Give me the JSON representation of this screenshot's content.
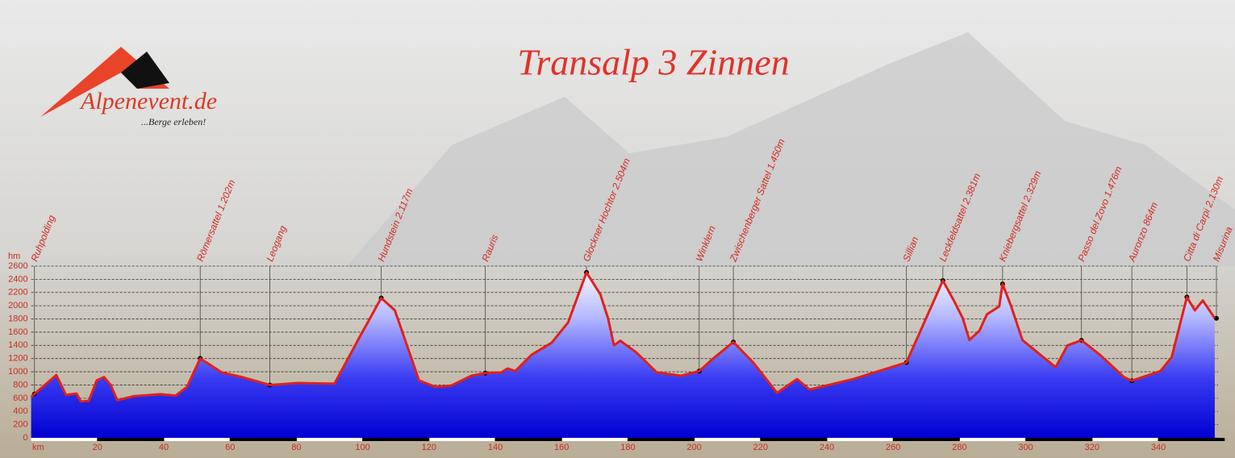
{
  "chart_data": {
    "type": "area",
    "title": "Transalp 3 Zinnen",
    "logo": {
      "name": "Alpenevent.de",
      "slogan": "...Berge erleben!"
    },
    "xlabel": "km",
    "ylabel": "hm",
    "x": [
      0,
      7.6,
      10.5,
      13.7,
      15,
      17.4,
      19.8,
      22,
      24,
      26,
      31,
      39,
      43.6,
      47,
      51,
      57.5,
      63.5,
      72,
      80.5,
      91.5,
      98.8,
      105.6,
      109.7,
      113.5,
      117,
      122,
      126.7,
      132.8,
      137,
      141.8,
      143.7,
      146,
      151,
      157,
      162,
      167.5,
      171.7,
      174,
      175.8,
      177.7,
      182.6,
      188.7,
      196,
      201.5,
      205.7,
      211.8,
      217.8,
      225,
      231,
      234.8,
      248,
      264,
      271,
      275,
      278.6,
      281,
      283,
      286,
      288.3,
      292,
      293,
      295.6,
      299,
      305.3,
      309,
      312.6,
      316.8,
      322.3,
      329.6,
      332,
      340.6,
      344,
      348.6,
      351,
      353.4,
      357
    ],
    "values": [
      620,
      950,
      650,
      670,
      550,
      560,
      870,
      920,
      800,
      570,
      630,
      660,
      640,
      770,
      1202,
      990,
      920,
      800,
      830,
      820,
      1500,
      2117,
      1930,
      1380,
      870,
      770,
      790,
      940,
      980,
      990,
      1050,
      1010,
      1260,
      1440,
      1750,
      2504,
      2170,
      1810,
      1400,
      1470,
      1290,
      990,
      940,
      1010,
      1200,
      1450,
      1140,
      680,
      890,
      730,
      890,
      1140,
      1930,
      2381,
      2050,
      1810,
      1480,
      1620,
      1870,
      1990,
      2329,
      1990,
      1480,
      1220,
      1070,
      1400,
      1476,
      1260,
      920,
      864,
      1010,
      1220,
      2130,
      1930,
      2080,
      1810
    ],
    "color": "#e0201c",
    "xlim": [
      0,
      358
    ],
    "ylim": [
      0,
      2600
    ],
    "xticks": [
      20,
      40,
      60,
      80,
      100,
      120,
      140,
      160,
      180,
      200,
      220,
      240,
      260,
      280,
      300,
      320,
      340
    ],
    "yticks": [
      0,
      200,
      400,
      600,
      800,
      1000,
      1200,
      1400,
      1600,
      1800,
      2000,
      2200,
      2400,
      2600
    ],
    "grid": true,
    "waypoints": [
      {
        "label": "Ruhpolding",
        "x": 1
      },
      {
        "label": "Römersattel 1.202m",
        "x": 51
      },
      {
        "label": "Leogang",
        "x": 72
      },
      {
        "label": "Hundstein 2.117m",
        "x": 105.6
      },
      {
        "label": "Rauris",
        "x": 137
      },
      {
        "label": "Glockner Hochtor 2.504m",
        "x": 167.5
      },
      {
        "label": "Winklern",
        "x": 201.5
      },
      {
        "label": "Zwischenberger Sattel 1.450m",
        "x": 211.8
      },
      {
        "label": "Sillian",
        "x": 264
      },
      {
        "label": "Leckfeldsattel 2.381m",
        "x": 275
      },
      {
        "label": "Kniebergsattel 2.329m",
        "x": 293
      },
      {
        "label": "Passo del Zovo 1.476m",
        "x": 316.8
      },
      {
        "label": "Auronzo 864m",
        "x": 332
      },
      {
        "label": "Citta di Carpi 2.130m",
        "x": 348.6
      },
      {
        "label": "Misurina",
        "x": 357.5
      }
    ]
  }
}
